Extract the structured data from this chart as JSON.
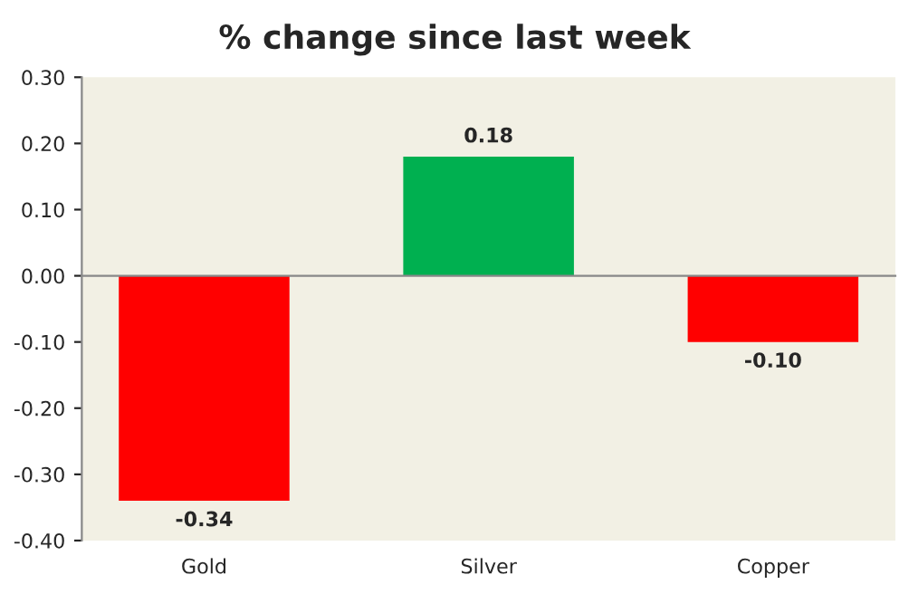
{
  "chart_data": {
    "type": "bar",
    "title": "% change since last week",
    "categories": [
      "Gold",
      "Silver",
      "Copper"
    ],
    "values": [
      -0.34,
      0.18,
      -0.1
    ],
    "colors": [
      "#ff0000",
      "#00b050",
      "#ff0000"
    ],
    "ylim": [
      -0.4,
      0.3
    ],
    "yticks": [
      {
        "value": -0.4,
        "label": "-0.40"
      },
      {
        "value": -0.3,
        "label": "-0.30"
      },
      {
        "value": -0.2,
        "label": "-0.20"
      },
      {
        "value": -0.1,
        "label": "-0.10"
      },
      {
        "value": 0,
        "label": "0.00"
      },
      {
        "value": 0.1,
        "label": "0.10"
      },
      {
        "value": 0.2,
        "label": "0.20"
      },
      {
        "value": 0.3,
        "label": "0.30"
      }
    ],
    "value_labels": [
      "-0.34",
      "0.18",
      "-0.10"
    ],
    "legend": false
  }
}
